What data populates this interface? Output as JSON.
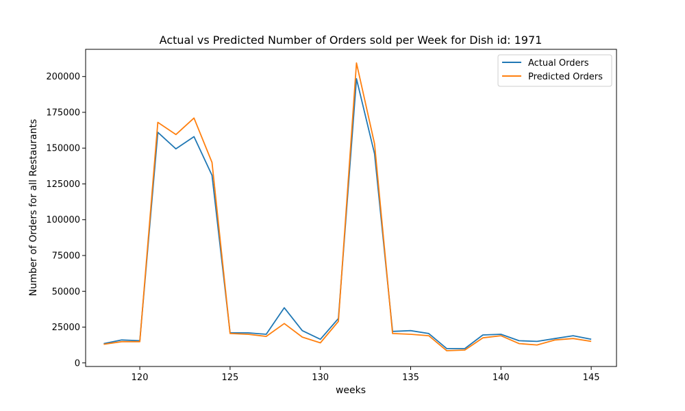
{
  "chart_data": {
    "type": "line",
    "title": "Actual vs Predicted Number of Orders sold per Week for Dish id: 1971",
    "xlabel": "weeks",
    "ylabel": "Number of Orders for all Restaurants",
    "xlim": [
      117,
      146.4
    ],
    "ylim": [
      -2500,
      219000
    ],
    "xticks": [
      120,
      125,
      130,
      135,
      140,
      145
    ],
    "yticks": [
      0,
      25000,
      50000,
      75000,
      100000,
      125000,
      150000,
      175000,
      200000
    ],
    "grid": false,
    "legend_position": "top-right",
    "x": [
      118,
      119,
      120,
      121,
      122,
      123,
      124,
      125,
      126,
      127,
      128,
      129,
      130,
      131,
      132,
      133,
      134,
      135,
      136,
      137,
      138,
      139,
      140,
      141,
      142,
      143,
      144,
      145
    ],
    "series": [
      {
        "name": "Actual Orders",
        "color": "#1f77b4",
        "values": [
          13500,
          16000,
          15500,
          161000,
          149500,
          158000,
          131000,
          21000,
          21000,
          20000,
          38500,
          22500,
          16500,
          31000,
          198500,
          146000,
          22000,
          22500,
          20500,
          10000,
          10000,
          19500,
          20000,
          15500,
          15000,
          17000,
          19000,
          16500
        ]
      },
      {
        "name": "Predicted Orders",
        "color": "#ff7f0e",
        "values": [
          13000,
          14800,
          14800,
          168000,
          159500,
          171000,
          140000,
          20500,
          20000,
          18500,
          27500,
          18000,
          14000,
          29000,
          209500,
          153000,
          20500,
          20000,
          19000,
          8500,
          9000,
          17500,
          19000,
          13500,
          12500,
          16000,
          17000,
          15000
        ]
      }
    ]
  }
}
